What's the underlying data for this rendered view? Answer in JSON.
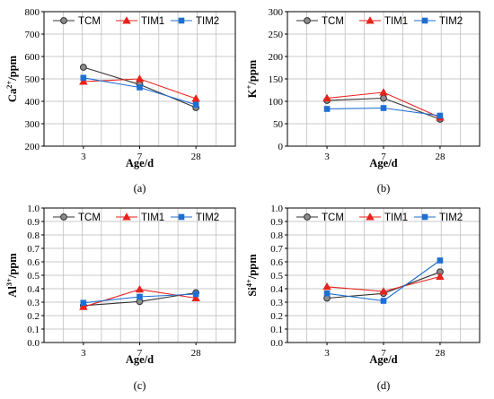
{
  "chart_data": [
    {
      "type": "line",
      "caption": "(a)",
      "categories": [
        "3",
        "7",
        "28"
      ],
      "xlabel": "Age/d",
      "ylabel": "Ca²⁺/ppm",
      "ylabel_base": "Ca",
      "ylabel_sup": "2+",
      "ylabel_rest": "/ppm",
      "ylim": [
        200,
        800
      ],
      "yticks": [
        "200",
        "300",
        "400",
        "500",
        "600",
        "700",
        "800"
      ],
      "grid": true,
      "legend": "top",
      "series": [
        {
          "name": "TCM",
          "color": "#333333",
          "marker": "circle",
          "values": [
            552,
            475,
            372
          ]
        },
        {
          "name": "TIM1",
          "color": "#e8221b",
          "marker": "triangle",
          "values": [
            488,
            500,
            412
          ]
        },
        {
          "name": "TIM2",
          "color": "#1f6fd1",
          "marker": "square",
          "values": [
            505,
            462,
            385
          ]
        }
      ]
    },
    {
      "type": "line",
      "caption": "(b)",
      "categories": [
        "3",
        "7",
        "28"
      ],
      "xlabel": "Age/d",
      "ylabel": "K⁺/ppm",
      "ylabel_base": "K",
      "ylabel_sup": "+",
      "ylabel_rest": "/ppm",
      "ylim": [
        0,
        300
      ],
      "yticks": [
        "0",
        "50",
        "100",
        "150",
        "200",
        "250",
        "300"
      ],
      "grid": true,
      "legend": "top",
      "series": [
        {
          "name": "TCM",
          "color": "#333333",
          "marker": "circle",
          "values": [
            102,
            107,
            60
          ]
        },
        {
          "name": "TIM1",
          "color": "#e8221b",
          "marker": "triangle",
          "values": [
            107,
            120,
            64
          ]
        },
        {
          "name": "TIM2",
          "color": "#1f6fd1",
          "marker": "square",
          "values": [
            83,
            85,
            68
          ]
        }
      ]
    },
    {
      "type": "line",
      "caption": "(c)",
      "categories": [
        "3",
        "7",
        "28"
      ],
      "xlabel": "Age/d",
      "ylabel": "Al³⁺/ppm",
      "ylabel_base": "Al",
      "ylabel_sup": "3+",
      "ylabel_rest": "/ppm",
      "ylim": [
        0,
        1.0
      ],
      "yticks": [
        "0.0",
        "0.1",
        "0.2",
        "0.3",
        "0.4",
        "0.5",
        "0.6",
        "0.7",
        "0.8",
        "0.9",
        "1.0"
      ],
      "grid": true,
      "legend": "top",
      "series": [
        {
          "name": "TCM",
          "color": "#333333",
          "marker": "circle",
          "values": [
            0.275,
            0.305,
            0.37
          ]
        },
        {
          "name": "TIM1",
          "color": "#e8221b",
          "marker": "triangle",
          "values": [
            0.265,
            0.395,
            0.33
          ]
        },
        {
          "name": "TIM2",
          "color": "#1f6fd1",
          "marker": "square",
          "values": [
            0.295,
            0.34,
            0.36
          ]
        }
      ]
    },
    {
      "type": "line",
      "caption": "(d)",
      "categories": [
        "3",
        "7",
        "28"
      ],
      "xlabel": "Age/d",
      "ylabel": "Si⁴⁺/ppm",
      "ylabel_base": "Si",
      "ylabel_sup": "4+",
      "ylabel_rest": "/ppm",
      "ylim": [
        0,
        1.0
      ],
      "yticks": [
        "0.0",
        "0.1",
        "0.2",
        "0.3",
        "0.4",
        "0.5",
        "0.6",
        "0.7",
        "0.8",
        "0.9",
        "1.0"
      ],
      "grid": true,
      "legend": "top",
      "series": [
        {
          "name": "TCM",
          "color": "#333333",
          "marker": "circle",
          "values": [
            0.33,
            0.365,
            0.525
          ]
        },
        {
          "name": "TIM1",
          "color": "#e8221b",
          "marker": "triangle",
          "values": [
            0.415,
            0.38,
            0.49
          ]
        },
        {
          "name": "TIM2",
          "color": "#1f6fd1",
          "marker": "square",
          "values": [
            0.365,
            0.31,
            0.61
          ]
        }
      ]
    }
  ]
}
